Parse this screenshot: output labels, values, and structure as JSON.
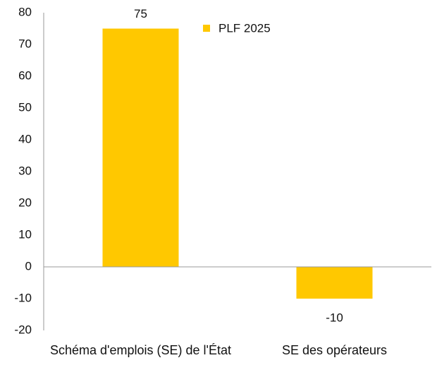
{
  "chart_data": {
    "type": "bar",
    "categories": [
      "Schéma d'emplois (SE) de l'État",
      "SE des opérateurs"
    ],
    "series": [
      {
        "name": "PLF 2025",
        "color": "#ffc800",
        "values": [
          75,
          -10
        ]
      }
    ],
    "ylim": [
      -20,
      80
    ],
    "yticks": [
      -20,
      -10,
      0,
      10,
      20,
      30,
      40,
      50,
      60,
      70,
      80
    ],
    "grid": false,
    "legend": "top-right"
  }
}
